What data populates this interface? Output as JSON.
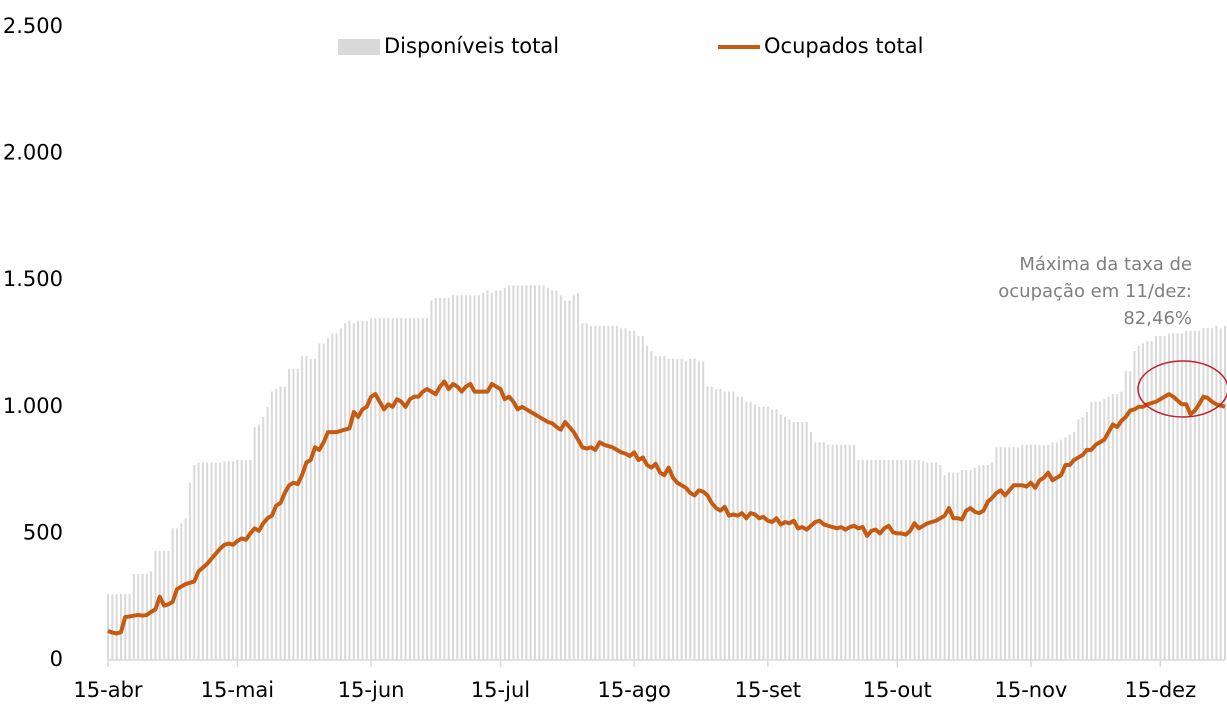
{
  "chart_data": {
    "type": "bar-line",
    "categories": [
      "15-abr",
      null,
      null,
      null,
      null,
      null,
      null,
      null,
      null,
      null,
      null,
      null,
      null,
      null,
      null,
      null,
      null,
      null,
      null,
      null,
      null,
      null,
      null,
      null,
      null,
      null,
      null,
      null,
      null,
      null,
      "15-mai",
      null,
      null,
      null,
      null,
      null,
      null,
      null,
      null,
      null,
      null,
      null,
      null,
      null,
      null,
      null,
      null,
      null,
      null,
      null,
      null,
      null,
      null,
      null,
      null,
      null,
      null,
      null,
      null,
      null,
      null,
      "15-jun",
      null,
      null,
      null,
      null,
      null,
      null,
      null,
      null,
      null,
      null,
      null,
      null,
      null,
      null,
      null,
      null,
      null,
      null,
      null,
      null,
      null,
      null,
      null,
      null,
      null,
      null,
      null,
      null,
      null,
      "15-jul",
      null,
      null,
      null,
      null,
      null,
      null,
      null,
      null,
      null,
      null,
      null,
      null,
      null,
      null,
      null,
      null,
      null,
      null,
      null,
      null,
      null,
      null,
      null,
      null,
      null,
      null,
      null,
      null,
      null,
      null,
      "15-ago",
      null,
      null,
      null,
      null,
      null,
      null,
      null,
      null,
      null,
      null,
      null,
      null,
      null,
      null,
      null,
      null,
      null,
      null,
      null,
      null,
      null,
      null,
      null,
      null,
      null,
      null,
      null,
      null,
      null,
      null,
      "15-set",
      null,
      null,
      null,
      null,
      null,
      null,
      null,
      null,
      null,
      null,
      null,
      null,
      null,
      null,
      null,
      null,
      null,
      null,
      null,
      null,
      null,
      null,
      null,
      null,
      null,
      null,
      null,
      null,
      null,
      "15-out",
      null,
      null,
      null,
      null,
      null,
      null,
      null,
      null,
      null,
      null,
      null,
      null,
      null,
      null,
      null,
      null,
      null,
      null,
      null,
      null,
      null,
      null,
      null,
      null,
      null,
      null,
      null,
      null,
      null,
      null,
      "15-nov",
      null,
      null,
      null,
      null,
      null,
      null,
      null,
      null,
      null,
      null,
      null,
      null,
      null,
      null,
      null,
      null,
      null,
      null,
      null,
      null,
      null,
      null,
      null,
      null,
      null,
      null,
      null,
      null,
      null,
      "15-dez",
      null,
      null,
      null,
      null,
      null,
      null,
      null,
      null,
      null,
      null,
      null,
      null,
      null,
      null,
      null
    ],
    "series": [
      {
        "name": "Disponíveis total",
        "type": "bar",
        "color": "#d9d9d9",
        "values": [
          260,
          260,
          260,
          260,
          260,
          260,
          340,
          340,
          340,
          340,
          350,
          430,
          430,
          430,
          430,
          520,
          520,
          540,
          560,
          700,
          770,
          780,
          780,
          780,
          780,
          780,
          780,
          785,
          785,
          785,
          790,
          790,
          790,
          790,
          920,
          930,
          960,
          1000,
          1060,
          1070,
          1080,
          1080,
          1150,
          1150,
          1150,
          1200,
          1200,
          1190,
          1190,
          1250,
          1250,
          1270,
          1290,
          1290,
          1310,
          1330,
          1340,
          1330,
          1340,
          1340,
          1340,
          1350,
          1350,
          1350,
          1350,
          1350,
          1350,
          1350,
          1350,
          1350,
          1350,
          1350,
          1350,
          1350,
          1350,
          1420,
          1430,
          1430,
          1430,
          1430,
          1440,
          1440,
          1440,
          1440,
          1440,
          1440,
          1440,
          1450,
          1460,
          1450,
          1460,
          1460,
          1470,
          1480,
          1480,
          1480,
          1480,
          1480,
          1480,
          1480,
          1480,
          1480,
          1470,
          1460,
          1460,
          1440,
          1420,
          1420,
          1440,
          1450,
          1330,
          1330,
          1320,
          1320,
          1320,
          1320,
          1320,
          1320,
          1320,
          1310,
          1310,
          1300,
          1300,
          1280,
          1280,
          1240,
          1220,
          1200,
          1200,
          1200,
          1190,
          1190,
          1190,
          1190,
          1180,
          1190,
          1190,
          1180,
          1180,
          1080,
          1080,
          1070,
          1070,
          1060,
          1060,
          1060,
          1040,
          1040,
          1020,
          1020,
          1010,
          1000,
          1000,
          1000,
          990,
          990,
          970,
          960,
          950,
          940,
          940,
          940,
          940,
          900,
          860,
          860,
          860,
          850,
          850,
          850,
          850,
          850,
          850,
          850,
          790,
          790,
          790,
          790,
          790,
          790,
          790,
          790,
          790,
          790,
          790,
          790,
          790,
          790,
          790,
          785,
          780,
          780,
          780,
          770,
          730,
          740,
          740,
          740,
          750,
          750,
          750,
          760,
          770,
          770,
          770,
          780,
          840,
          840,
          840,
          840,
          840,
          840,
          850,
          850,
          850,
          850,
          850,
          850,
          850,
          860,
          860,
          870,
          880,
          890,
          900,
          950,
          960,
          980,
          1020,
          1020,
          1020,
          1030,
          1040,
          1050,
          1050,
          1060,
          1140,
          1140,
          1220,
          1240,
          1250,
          1260,
          1260,
          1280,
          1280,
          1280,
          1290,
          1290,
          1290,
          1290,
          1300,
          1300,
          1300,
          1300,
          1310,
          1310,
          1310,
          1320,
          1310,
          1320
        ]
      },
      {
        "name": "Ocupados total",
        "type": "line",
        "color": "#c55a11",
        "values": [
          115,
          108,
          105,
          110,
          170,
          172,
          175,
          178,
          175,
          178,
          190,
          200,
          250,
          215,
          220,
          230,
          280,
          290,
          300,
          305,
          310,
          350,
          365,
          380,
          400,
          420,
          440,
          455,
          460,
          455,
          470,
          480,
          475,
          500,
          520,
          510,
          540,
          560,
          570,
          610,
          620,
          660,
          690,
          700,
          695,
          730,
          780,
          790,
          840,
          830,
          860,
          900,
          900,
          900,
          905,
          910,
          915,
          980,
          960,
          990,
          1000,
          1040,
          1050,
          1020,
          990,
          1010,
          1000,
          1030,
          1020,
          1000,
          1030,
          1040,
          1040,
          1060,
          1070,
          1060,
          1050,
          1080,
          1100,
          1070,
          1090,
          1080,
          1060,
          1080,
          1090,
          1060,
          1060,
          1060,
          1060,
          1090,
          1080,
          1070,
          1030,
          1040,
          1020,
          990,
          1000,
          990,
          980,
          970,
          960,
          950,
          940,
          935,
          920,
          910,
          940,
          920,
          900,
          870,
          840,
          835,
          840,
          830,
          860,
          850,
          845,
          840,
          830,
          820,
          815,
          805,
          820,
          790,
          800,
          770,
          760,
          775,
          740,
          730,
          760,
          720,
          700,
          690,
          680,
          660,
          650,
          670,
          665,
          650,
          620,
          600,
          590,
          605,
          570,
          575,
          570,
          580,
          560,
          580,
          575,
          560,
          565,
          550,
          545,
          560,
          535,
          545,
          540,
          550,
          520,
          525,
          515,
          530,
          545,
          550,
          535,
          530,
          525,
          520,
          525,
          515,
          525,
          530,
          520,
          525,
          490,
          510,
          515,
          500,
          520,
          530,
          505,
          500,
          500,
          495,
          510,
          540,
          520,
          530,
          540,
          545,
          550,
          560,
          570,
          600,
          560,
          560,
          555,
          590,
          600,
          585,
          580,
          590,
          625,
          640,
          660,
          670,
          650,
          670,
          690,
          690,
          690,
          685,
          700,
          680,
          710,
          720,
          740,
          710,
          720,
          730,
          770,
          770,
          790,
          800,
          810,
          830,
          830,
          850,
          860,
          870,
          900,
          930,
          920,
          945,
          960,
          985,
          990,
          1000,
          1000,
          1010,
          1015,
          1020,
          1030,
          1040,
          1050,
          1040,
          1025,
          1010,
          1010,
          970,
          985,
          1010,
          1040,
          1035,
          1020,
          1010,
          1005,
          1000
        ]
      }
    ],
    "ylim": [
      0,
      2500
    ],
    "yticks": [
      0,
      500,
      {
        "value": 1000,
        "label": "1.000"
      },
      {
        "value": 1500,
        "label": "1.500"
      },
      {
        "value": 2000,
        "label": "2.000"
      },
      {
        "value": 2500,
        "label": "2.500"
      }
    ],
    "annotation": [
      "Máxima da taxa de",
      "ocupação em 11/dez:",
      "82,46%"
    ],
    "legend": "top"
  }
}
